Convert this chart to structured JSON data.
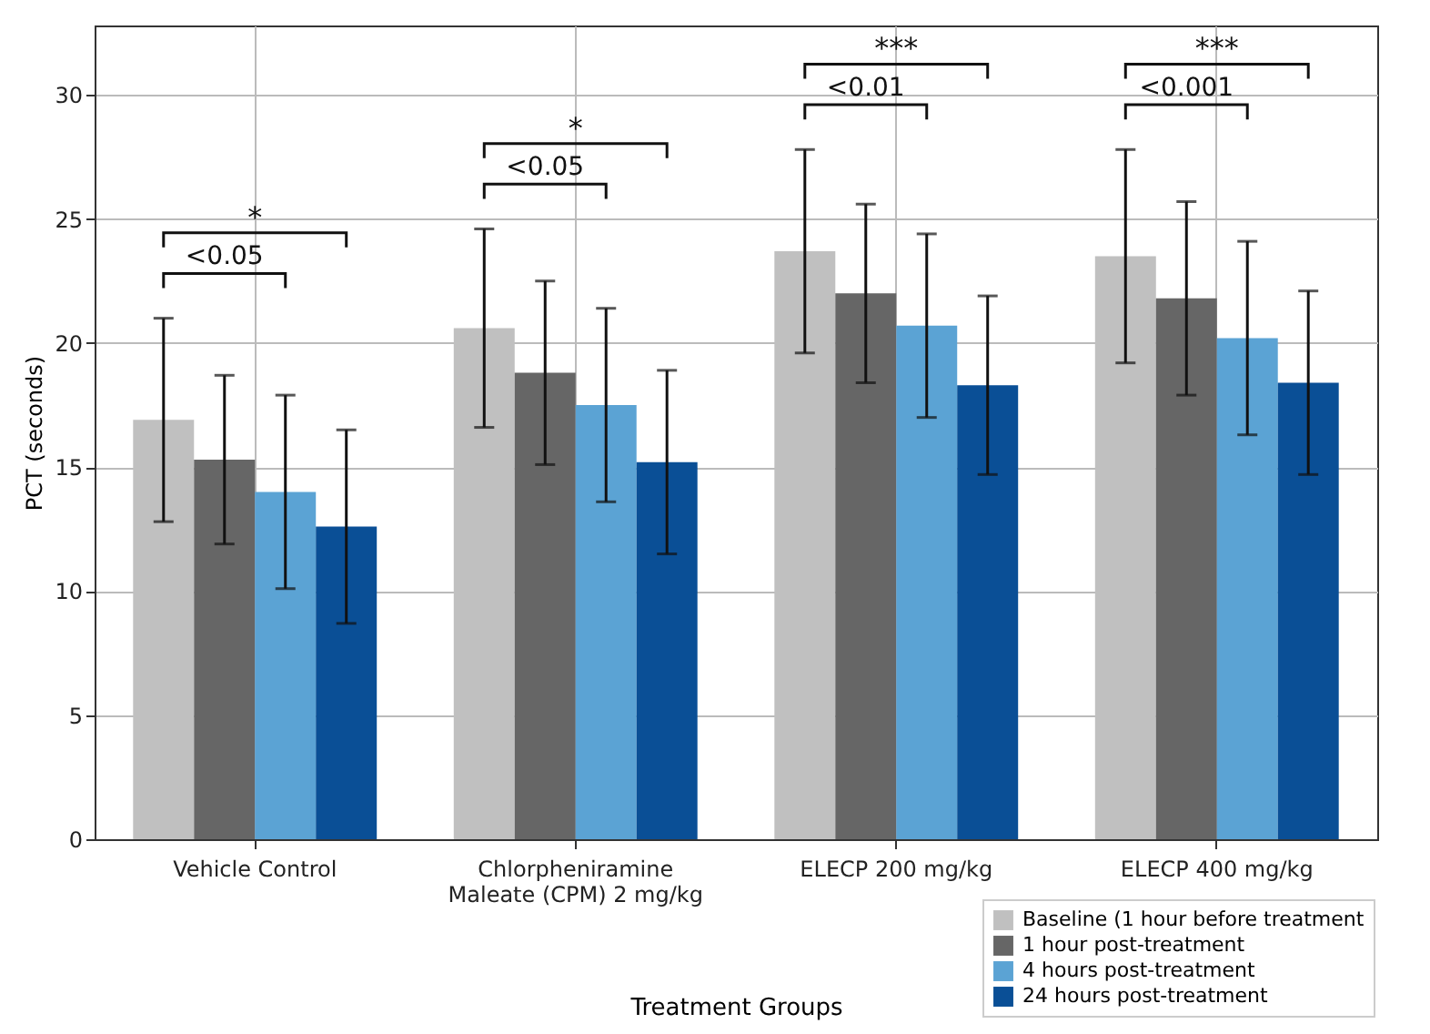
{
  "chart_data": {
    "type": "bar",
    "xlabel": "Treatment Groups",
    "ylabel": "PCT (seconds)",
    "categories": [
      "Vehicle Control",
      "Chlorpheniramine\nMaleate (CPM) 2 mg/kg",
      "ELECP 200 mg/kg",
      "ELECP 400 mg/kg"
    ],
    "series": [
      {
        "name": "Baseline (1 hour before treatment",
        "color": "#c0c0c0",
        "values": [
          16.9,
          20.6,
          23.7,
          23.5
        ],
        "errors": [
          4.1,
          4.0,
          4.1,
          4.3
        ]
      },
      {
        "name": "1 hour post-treatment",
        "color": "#666666",
        "values": [
          15.3,
          18.8,
          22.0,
          21.8
        ],
        "errors": [
          3.4,
          3.7,
          3.6,
          3.9
        ]
      },
      {
        "name": "4 hours post-treatment",
        "color": "#5ba3d4",
        "values": [
          14.0,
          17.5,
          20.7,
          20.2
        ],
        "errors": [
          3.9,
          3.9,
          3.7,
          3.9
        ]
      },
      {
        "name": "24 hours post-treatment",
        "color": "#0a4f96",
        "values": [
          12.6,
          15.2,
          18.3,
          18.4
        ],
        "errors": [
          3.9,
          3.7,
          3.6,
          3.7
        ]
      }
    ],
    "ylim": [
      0,
      32.8
    ],
    "yticks": [
      0,
      5,
      10,
      15,
      20,
      25,
      30
    ],
    "grid": true,
    "legend": "bottom right",
    "annotations": [
      "<0.05",
      "*",
      "<0.05",
      "*",
      "<0.01",
      "***",
      "<0.001",
      "***"
    ]
  }
}
